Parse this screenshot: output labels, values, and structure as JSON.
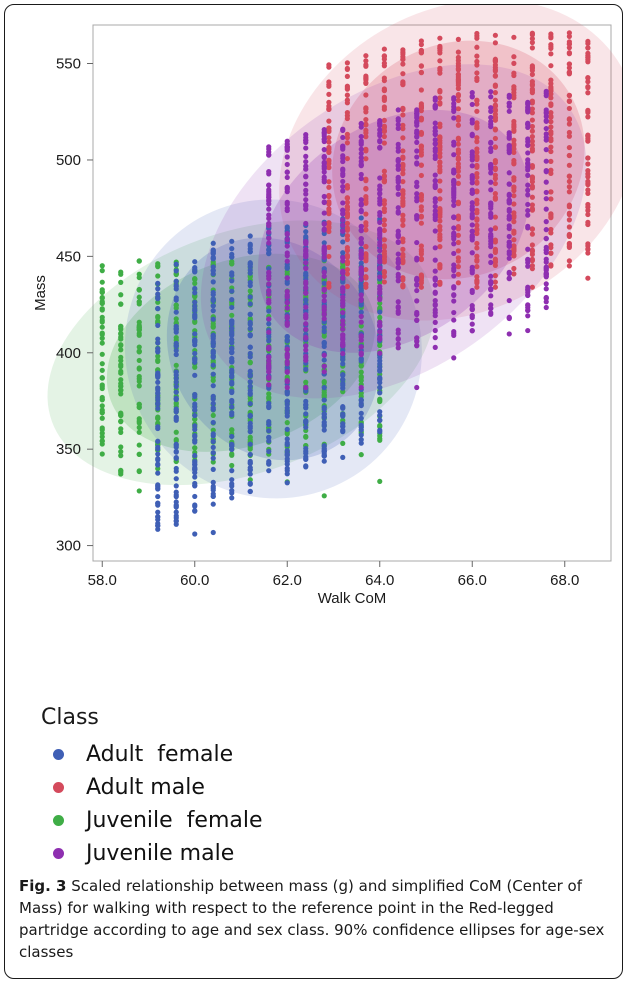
{
  "chart_data": {
    "type": "scatter",
    "xlabel": "Walk CoM",
    "ylabel": "Mass",
    "xlim": [
      57.8,
      69.0
    ],
    "ylim": [
      292,
      570
    ],
    "xticks": [
      "58.0",
      "60.0",
      "62.0",
      "64.0",
      "66.0",
      "68.0"
    ],
    "yticks": [
      "300",
      "350",
      "400",
      "450",
      "500",
      "550"
    ],
    "grid": false,
    "legend_position": "bottom",
    "legend_title": "Class",
    "series": [
      {
        "name": "Adult  female",
        "color": "#3f5fb5",
        "x_range": [
          59.2,
          64.0
        ],
        "mass_range": [
          306,
          470
        ],
        "ellipse_90": {
          "center": [
            61.7,
            402
          ],
          "semi_axis_x": 2.2,
          "semi_axis_y": 60,
          "rotation_deg": -35
        }
      },
      {
        "name": "Adult male",
        "color": "#d44a5c",
        "x_range": [
          62.9,
          68.8
        ],
        "mass_range": [
          434,
          566
        ],
        "ellipse_90": {
          "center": [
            65.7,
            500
          ],
          "semi_axis_x": 2.8,
          "semi_axis_y": 60,
          "rotation_deg": -30
        }
      },
      {
        "name": "Juvenile  female",
        "color": "#3fad46",
        "x_range": [
          58.0,
          64.0
        ],
        "mass_range": [
          298,
          448
        ],
        "ellipse_90": {
          "center": [
            61.0,
            400
          ],
          "semi_axis_x": 3.0,
          "semi_axis_y": 48,
          "rotation_deg": -20
        }
      },
      {
        "name": "Juvenile male",
        "color": "#8e2fb0",
        "x_range": [
          61.6,
          67.6
        ],
        "mass_range": [
          382,
          536
        ],
        "ellipse_90": {
          "center": [
            64.3,
            463
          ],
          "semi_axis_x": 3.2,
          "semi_axis_y": 55,
          "rotation_deg": -35
        }
      }
    ]
  },
  "caption": {
    "label": "Fig. 3",
    "text": "Scaled relationship between mass (g) and simplified CoM (Center of Mass) for walking with respect to the reference point in the Red-legged partridge according to age and sex class. 90% confidence ellipses for age-sex classes"
  }
}
